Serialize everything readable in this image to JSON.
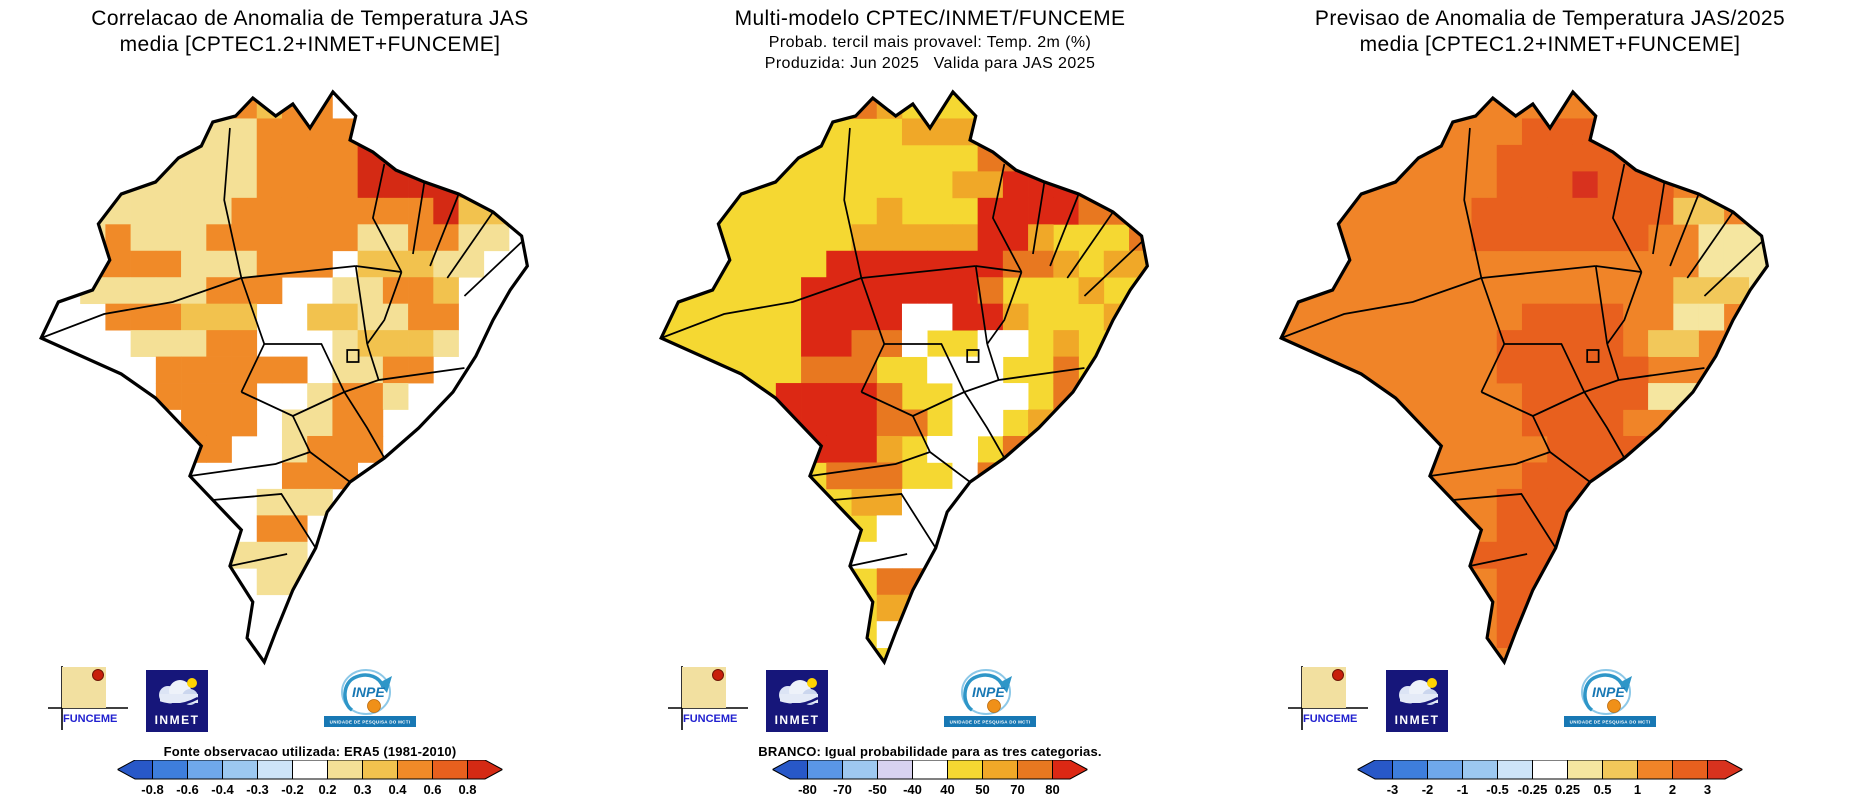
{
  "page_background": "#FFFFFF",
  "logos": {
    "funceme_label": "FUNCEME",
    "inmet_label": "INMET",
    "inpe_label": "INPE",
    "inpe_banner": "UNIDADE DE PESQUISA DO MCTI"
  },
  "chart_data": {
    "type": "heatmap",
    "panels": [
      {
        "id": "correlation",
        "title_lines": [
          "Correlacao de Anomalia de Temperatura JAS",
          "media [CPTEC1.2+INMET+FUNCEME]"
        ],
        "footer_note": "Fonte observacao utilizada: ERA5 (1981-2010)",
        "colorbar": {
          "tick_labels": [
            "-0.8",
            "-0.6",
            "-0.4",
            "-0.3",
            "-0.2",
            "0.2",
            "0.3",
            "0.4",
            "0.6",
            "0.8"
          ],
          "segment_colors": [
            "#2858C8",
            "#3E7EDC",
            "#6FA8EB",
            "#9CC8F0",
            "#CDE4F8",
            "#FFFFFF",
            "#F4E096",
            "#F2C24E",
            "#F08A28",
            "#E8601E",
            "#D42A14"
          ]
        },
        "map": {
          "base_color": "#FFFFFF",
          "palette": {
            "y": "#F4E096",
            "g": "#F2C24E",
            "o": "#F08A28",
            "r": "#D42A14",
            "w": "#FFFFFF"
          },
          "grid_rows": [
            "........ogoo..........",
            ".....yyyyooooooo......",
            ".yyyoyyyyoooorrrroo...",
            "yyoyyyyyyoooorrrrooo..",
            "yyyyyyyyoooooooorggg..",
            "yyyoyyyooooooyyooyy...",
            ".oooooyyyooo.gggyy....",
            "..yyyyyooo..yyoog.....",
            "...oooggg..ggyyoo.....",
            "....yyyoo...ygggy.....",
            ".....oooooo.yyoo......",
            ".....oooo..yooy.......",
            "......ooo.yyoo........",
            "......oo..yooo........",
            "..........ooo.........",
            ".........yyy..........",
            ".........oo...........",
            "........yyy...........",
            ".........yy...........",
            "......................",
            "......................",
            "......................"
          ]
        }
      },
      {
        "id": "probability",
        "title_lines": [
          "Multi-modelo CPTEC/INMET/FUNCEME",
          "Probab. tercil mais provavel: Temp. 2m (%)",
          "Produzida: Jun 2025   Valida para JAS 2025"
        ],
        "footer_note": "BRANCO: Igual probabilidade para as tres categorias.",
        "colorbar": {
          "tick_labels": [
            "-80",
            "-70",
            "-50",
            "-40",
            "40",
            "50",
            "70",
            "80"
          ],
          "segment_colors": [
            "#2858C8",
            "#5A96E6",
            "#9EC8F0",
            "#D8D2F0",
            "#FFFFFF",
            "#F5D832",
            "#F0A828",
            "#E87820",
            "#DC2814"
          ]
        },
        "map": {
          "base_color": "#F5D832",
          "palette": {
            "g": "#F0A828",
            "o": "#E87820",
            "r": "#DC2814",
            "w": "#FFFFFF"
          },
          "grid_rows": [
            "........og............",
            "..........ggg.........",
            ".............oooo.....",
            "............ggrrro....",
            ".........g...rrrroorr.",
            "........gggggrrg...o..",
            ".......rrrrrrroog.gg..",
            "......rrrrrrro...g....",
            "......rrrrwwrrg...g...",
            "......rroow..ww.g.....",
            "......ooo..www..o.....",
            ".....rrrro..www.oo....",
            ".....rrrroo.ww.g......",
            "......rrrg.ww.o.......",
            ".......ooo..wo........",
            "........ggwww.........",
            ".........wwww.........",
            "........wwww..........",
            ".........ooo..........",
            ".........gg...........",
            ".........ww...........",
            "......................"
          ]
        }
      },
      {
        "id": "forecast",
        "title_lines": [
          "Previsao de Anomalia de Temperatura JAS/2025",
          "media [CPTEC1.2+INMET+FUNCEME]"
        ],
        "footer_note": "",
        "colorbar": {
          "tick_labels": [
            "-3",
            "-2",
            "-1",
            "-0.5",
            "-0.25",
            "0.25",
            "0.5",
            "1",
            "2",
            "3"
          ],
          "segment_colors": [
            "#2858C8",
            "#3E7EDC",
            "#6FA8EB",
            "#9CC8F0",
            "#CDE4F8",
            "#FFFFFF",
            "#F5E6A0",
            "#F2C85A",
            "#F08428",
            "#E8601E",
            "#D8321E"
          ]
        },
        "map": {
          "base_color": "#F08428",
          "palette": {
            "d": "#E8601E",
            "r": "#D8321E",
            "p": "#F5E6A0",
            "g": "#F2C85A",
            "w": "#FFFFFF"
          },
          "grid_rows": [
            "......................",
            "..........ddd.........",
            ".........dddddd.......",
            ".........dddrddd......",
            "........ddddddddgg....",
            "........ddddddd..ppp..",
            ".................pppg.",
            "................gggp..",
            "..........dddd..pp....",
            ".........ddddd.gg.....",
            ".........dddddd.......",
            "..........dddddpp.....",
            "..........dddd........",
            "...........dddd.......",
            "..........ddddg.......",
            ".........ddddd........",
            ".........ddddp........",
            "........dddd..........",
            ".........ddd..........",
            ".........ddp..........",
            ".........dd...........",
            "......................"
          ]
        }
      }
    ]
  }
}
